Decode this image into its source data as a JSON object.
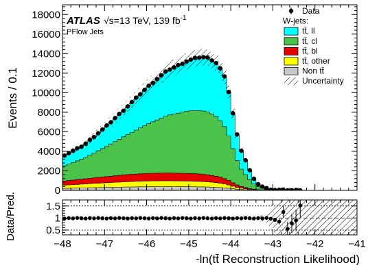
{
  "chart_data": [
    {
      "type": "area",
      "panel": "main",
      "experiment": "ATLAS",
      "energy_text": "√s=13 TeV, 139 fb",
      "lumi_exponent": "-1",
      "jet_type": "PFlow Jets",
      "ylabel": "Events / 0.1",
      "ylim": [
        0,
        19000
      ],
      "xlim": [
        -48,
        -41
      ],
      "yticks": [
        0,
        2000,
        4000,
        6000,
        8000,
        10000,
        12000,
        14000,
        16000,
        18000
      ],
      "ytick_labels": [
        "0",
        "2000",
        "4000",
        "6000",
        "8000",
        "10000",
        "12000",
        "14000",
        "16000",
        "18000"
      ],
      "stack_order": [
        "Non tt̄",
        "tt̄, other",
        "tt̄, bl",
        "tt̄, cl",
        "tt̄, ll"
      ],
      "legend": {
        "placement": "top-right",
        "data_label": "Data",
        "group_label": "W-jets:",
        "entries": [
          {
            "label": "tt̄, ll",
            "color": "#00ffff"
          },
          {
            "label": "tt̄, cl",
            "color": "#4bc34b"
          },
          {
            "label": "tt̄, bl",
            "color": "#e60000"
          },
          {
            "label": "tt̄, other",
            "color": "#ffff00"
          },
          {
            "label": "Non tt̄",
            "color": "#c8c8c8"
          }
        ],
        "uncertainty_label": "Uncertainty"
      },
      "anchors": {
        "x": [
          -48.0,
          -47.5,
          -47.0,
          -46.5,
          -46.0,
          -45.5,
          -45.0,
          -44.8,
          -44.6,
          -44.5,
          -44.3,
          -44.1,
          -44.0,
          -43.9,
          -43.8,
          -43.6,
          -43.5,
          -43.4,
          -43.2,
          -43.0,
          -42.5,
          -42.0,
          -41.0
        ],
        "total": [
          3500,
          4600,
          6400,
          8400,
          10500,
          12300,
          13300,
          13600,
          13650,
          13500,
          12900,
          11200,
          9000,
          6800,
          4600,
          2600,
          1500,
          800,
          250,
          60,
          10,
          2,
          0
        ],
        "cl": [
          1500,
          2100,
          3000,
          4000,
          5000,
          5900,
          6400,
          6500,
          6480,
          6400,
          6000,
          5100,
          4000,
          3000,
          2000,
          1100,
          700,
          370,
          120,
          30,
          5,
          1,
          0
        ],
        "bl": [
          420,
          520,
          620,
          720,
          780,
          800,
          790,
          770,
          740,
          710,
          640,
          520,
          400,
          300,
          200,
          110,
          70,
          40,
          12,
          4,
          1,
          0,
          0
        ],
        "other": [
          320,
          400,
          470,
          540,
          590,
          600,
          580,
          560,
          540,
          520,
          470,
          380,
          300,
          220,
          150,
          80,
          50,
          30,
          10,
          3,
          1,
          0,
          0
        ],
        "non": [
          200,
          250,
          300,
          340,
          370,
          380,
          370,
          360,
          350,
          340,
          300,
          240,
          190,
          140,
          100,
          55,
          35,
          20,
          7,
          2,
          1,
          0,
          0
        ]
      },
      "data_x_range": [
        -47.95,
        -42.35
      ],
      "data_bin_width": 0.1
    },
    {
      "type": "scatter",
      "panel": "ratio",
      "ylabel": "Data/Pred.",
      "xlabel": "-ln(tt̄ Reconstruction Likelihood)",
      "ylim": [
        0.3,
        1.75
      ],
      "yticks": [
        0.5,
        1,
        1.5
      ],
      "ytick_labels": [
        "0.5",
        "1",
        "1.5"
      ],
      "xticks": [
        -48,
        -47,
        -46,
        -45,
        -44,
        -43,
        -42,
        -41
      ],
      "xtick_labels": [
        "−48",
        "−47",
        "−46",
        "−45",
        "−44",
        "−43",
        "−42",
        "−41"
      ],
      "reference_lines": [
        0.5,
        1,
        1.5
      ],
      "ratio_points": [
        {
          "x": -43.05,
          "y": 0.97,
          "err": 0.05
        },
        {
          "x": -42.95,
          "y": 0.92,
          "err": 0.08
        },
        {
          "x": -42.85,
          "y": 0.85,
          "err": 0.12
        },
        {
          "x": -42.75,
          "y": 1.25,
          "err": 0.25
        },
        {
          "x": -42.65,
          "y": 0.55,
          "err": 0.3
        },
        {
          "x": -42.55,
          "y": 0.78,
          "err": 0.4
        },
        {
          "x": -42.45,
          "y": 0.9,
          "err": 0.45
        },
        {
          "x": -42.35,
          "y": 1.52,
          "err": 0.5
        }
      ],
      "ratio_default": 0.99
    }
  ]
}
